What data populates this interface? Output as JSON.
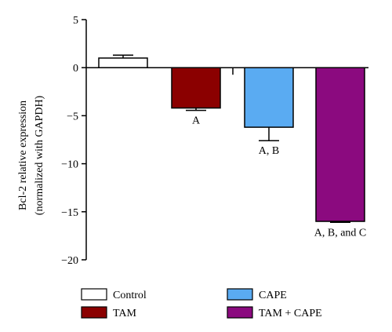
{
  "chart_data": {
    "type": "bar",
    "ylabel_line1": "Bcl-2 relative expression",
    "ylabel_line2": "(normalized with GAPDH)",
    "ylim": [
      -20,
      5
    ],
    "yticks": [
      5,
      0,
      -5,
      -10,
      -15,
      -20
    ],
    "ytick_labels": [
      "5",
      "0",
      "−5",
      "−10",
      "−15",
      "−20"
    ],
    "grid": false,
    "legend_position": "bottom",
    "categories": [
      "Control",
      "TAM",
      "CAPE",
      "TAM + CAPE"
    ],
    "values": [
      1.0,
      -4.2,
      -6.2,
      -16.0
    ],
    "errors": [
      0.3,
      0.25,
      1.4,
      0.1
    ],
    "annotations": [
      "",
      "A",
      "A, B",
      "A, B, and C"
    ],
    "colors": [
      "#ffffff",
      "#8b0000",
      "#5aabf2",
      "#8b0a7f"
    ]
  }
}
